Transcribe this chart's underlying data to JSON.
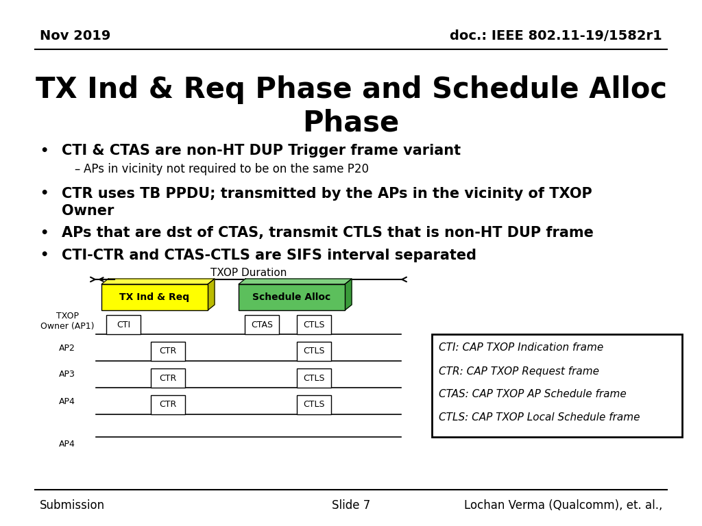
{
  "title": "TX Ind & Req Phase and Schedule Alloc\nPhase",
  "header_left": "Nov 2019",
  "header_right": "doc.: IEEE 802.11-19/1582r1",
  "footer_left": "Submission",
  "footer_center": "Slide 7",
  "footer_right": "Lochan Verma (Qualcomm), et. al.,",
  "legend_lines": [
    "CTI: CAP TXOP Indication frame",
    "CTR: CAP TXOP Request frame",
    "CTAS: CAP TXOP AP Schedule frame",
    "CTLS: CAP TXOP Local Schedule frame"
  ],
  "bg_color": "#ffffff"
}
